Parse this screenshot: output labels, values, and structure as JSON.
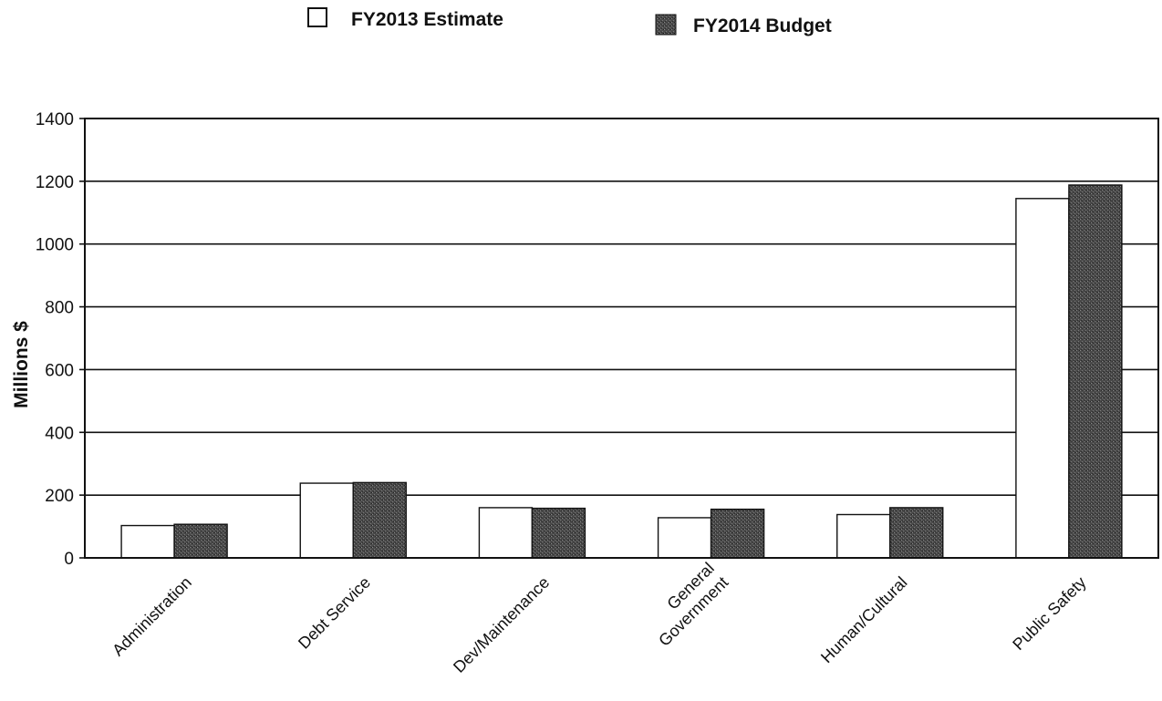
{
  "chart_data": {
    "type": "bar",
    "title": "",
    "xlabel": "",
    "ylabel": "Millions $",
    "ylim": [
      0,
      1400
    ],
    "yticks": [
      0,
      200,
      400,
      600,
      800,
      1000,
      1200,
      1400
    ],
    "grid": true,
    "legend_position": "top",
    "categories": [
      [
        "Administration"
      ],
      [
        "Debt Service"
      ],
      [
        "Dev/Maintenance"
      ],
      [
        "General",
        "Government"
      ],
      [
        "Human/Cultural"
      ],
      [
        "Public Safety"
      ]
    ],
    "series": [
      {
        "name": "FY2013 Estimate",
        "color": "#ffffff",
        "values": [
          103,
          238,
          160,
          128,
          138,
          1145
        ]
      },
      {
        "name": "FY2014 Budget",
        "color": "#4a4a4a",
        "values": [
          107,
          240,
          158,
          155,
          160,
          1188
        ]
      }
    ]
  },
  "colors": {
    "background": "#ffffff",
    "axis": "#111111",
    "grid": "#111111",
    "bar_outline": "#111111"
  }
}
